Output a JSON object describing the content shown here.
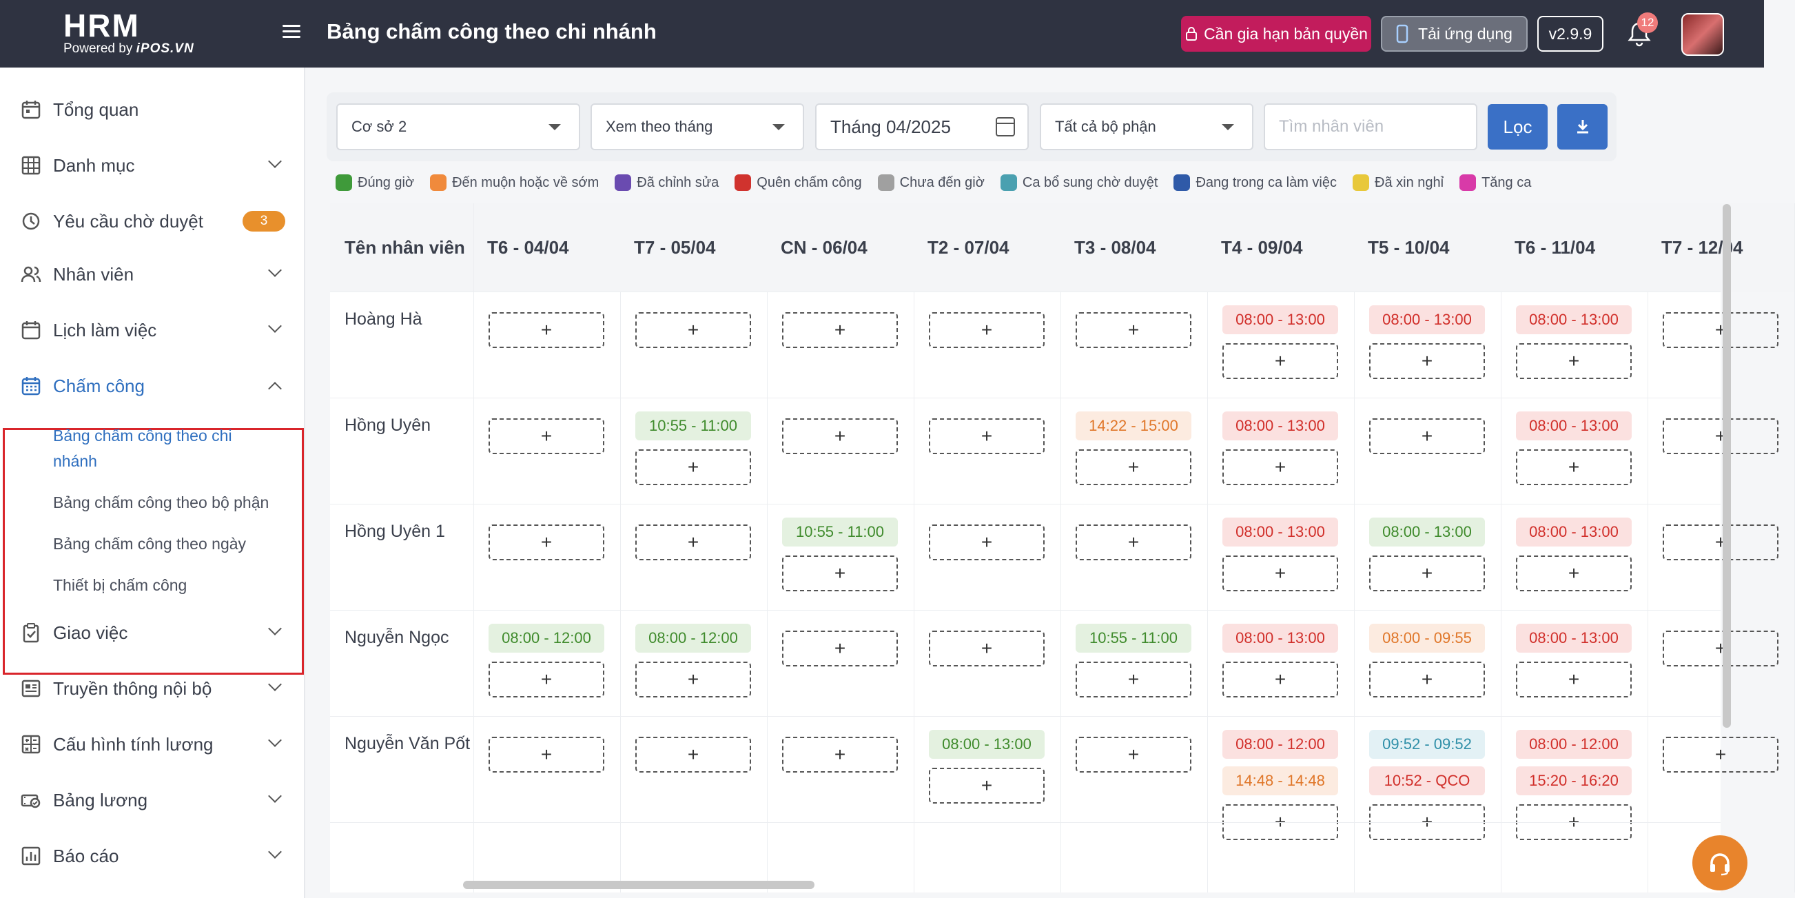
{
  "header": {
    "logo_main": "HRM",
    "logo_powered": "Powered by",
    "logo_brand": "iPOS.VN",
    "title": "Bảng chấm công theo chi nhánh",
    "renew_label": "Cần gia hạn bản quyền",
    "app_label": "Tải ứng dụng",
    "version": "v2.9.9",
    "notif_count": "12"
  },
  "sidebar": {
    "items": [
      {
        "label": "Tổng quan",
        "icon": "calendar-icon"
      },
      {
        "label": "Danh mục",
        "icon": "grid-icon"
      },
      {
        "label": "Yêu cầu chờ duyệt",
        "icon": "clock-icon",
        "badge": "3"
      },
      {
        "label": "Nhân viên",
        "icon": "users-icon"
      },
      {
        "label": "Lịch làm việc",
        "icon": "calendar-icon"
      },
      {
        "label": "Chấm công",
        "icon": "calendar-grid-icon"
      },
      {
        "label": "Giao việc",
        "icon": "clipboard-icon"
      },
      {
        "label": "Truyền thông nội bộ",
        "icon": "newspaper-icon"
      },
      {
        "label": "Cấu hình tính lương",
        "icon": "calculator-icon"
      },
      {
        "label": "Bảng lương",
        "icon": "money-icon"
      },
      {
        "label": "Báo cáo",
        "icon": "chart-icon"
      }
    ],
    "sub_items": [
      "Bảng chấm công theo chi nhánh",
      "Bảng chấm công theo bộ phận",
      "Bảng chấm công theo ngày",
      "Thiết bị chấm công"
    ]
  },
  "filters": {
    "branch": "Cơ sở 2",
    "view_mode": "Xem theo tháng",
    "month": "Tháng 04/2025",
    "department": "Tất cả bộ phận",
    "search_placeholder": "Tìm nhân viên",
    "filter_button": "Lọc"
  },
  "legend": [
    {
      "label": "Đúng giờ",
      "color": "#3f9a3a"
    },
    {
      "label": "Đến muộn hoặc về sớm",
      "color": "#f08a3c"
    },
    {
      "label": "Đã chỉnh sửa",
      "color": "#6a4bb0"
    },
    {
      "label": "Quên chấm công",
      "color": "#d0332e"
    },
    {
      "label": "Chưa đến giờ",
      "color": "#a0a0a0"
    },
    {
      "label": "Ca bổ sung chờ duyệt",
      "color": "#4aa0b0"
    },
    {
      "label": "Đang trong ca làm việc",
      "color": "#2f5aa8"
    },
    {
      "label": "Đã xin nghỉ",
      "color": "#e8c83a"
    },
    {
      "label": "Tăng ca",
      "color": "#d83aa8"
    }
  ],
  "table": {
    "name_header": "Tên nhân viên",
    "days": [
      "T6 - 04/04",
      "T7 - 05/04",
      "CN - 06/04",
      "T2 - 07/04",
      "T3 - 08/04",
      "T4 - 09/04",
      "T5 - 10/04",
      "T6 - 11/04",
      "T7 - 12/04"
    ],
    "add_symbol": "+",
    "rows": [
      {
        "name": "Hoàng Hà",
        "cells": [
          [],
          [],
          [],
          [],
          [],
          [
            {
              "t": "08:00 - 13:00",
              "s": "red"
            }
          ],
          [
            {
              "t": "08:00 - 13:00",
              "s": "red"
            }
          ],
          [
            {
              "t": "08:00 - 13:00",
              "s": "red"
            }
          ],
          []
        ]
      },
      {
        "name": "Hồng Uyên",
        "cells": [
          [],
          [
            {
              "t": "10:55 - 11:00",
              "s": "green"
            }
          ],
          [],
          [],
          [
            {
              "t": "14:22 - 15:00",
              "s": "orange"
            }
          ],
          [
            {
              "t": "08:00 - 13:00",
              "s": "red"
            }
          ],
          [],
          [
            {
              "t": "08:00 - 13:00",
              "s": "red"
            }
          ],
          []
        ]
      },
      {
        "name": "Hồng Uyên 1",
        "cells": [
          [],
          [],
          [
            {
              "t": "10:55 - 11:00",
              "s": "green"
            }
          ],
          [],
          [],
          [
            {
              "t": "08:00 - 13:00",
              "s": "red"
            }
          ],
          [
            {
              "t": "08:00 - 13:00",
              "s": "green"
            }
          ],
          [
            {
              "t": "08:00 - 13:00",
              "s": "red"
            }
          ],
          []
        ]
      },
      {
        "name": "Nguyễn Ngọc",
        "cells": [
          [
            {
              "t": "08:00 - 12:00",
              "s": "green"
            }
          ],
          [
            {
              "t": "08:00 - 12:00",
              "s": "green"
            }
          ],
          [],
          [],
          [
            {
              "t": "10:55 - 11:00",
              "s": "green"
            }
          ],
          [
            {
              "t": "08:00 - 13:00",
              "s": "red"
            }
          ],
          [
            {
              "t": "08:00 - 09:55",
              "s": "orange"
            }
          ],
          [
            {
              "t": "08:00 - 13:00",
              "s": "red"
            }
          ],
          []
        ]
      },
      {
        "name": "Nguyễn Văn Pốt",
        "cells": [
          [],
          [],
          [],
          [
            {
              "t": "08:00 - 13:00",
              "s": "green"
            }
          ],
          [],
          [
            {
              "t": "08:00 - 12:00",
              "s": "red"
            },
            {
              "t": "14:48 - 14:48",
              "s": "orange"
            }
          ],
          [
            {
              "t": "09:52 - 09:52",
              "s": "teal"
            },
            {
              "t": "10:52 - QCO",
              "s": "red"
            }
          ],
          [
            {
              "t": "08:00 - 12:00",
              "s": "red"
            },
            {
              "t": "15:20 - 16:20",
              "s": "red"
            }
          ],
          []
        ]
      }
    ]
  }
}
